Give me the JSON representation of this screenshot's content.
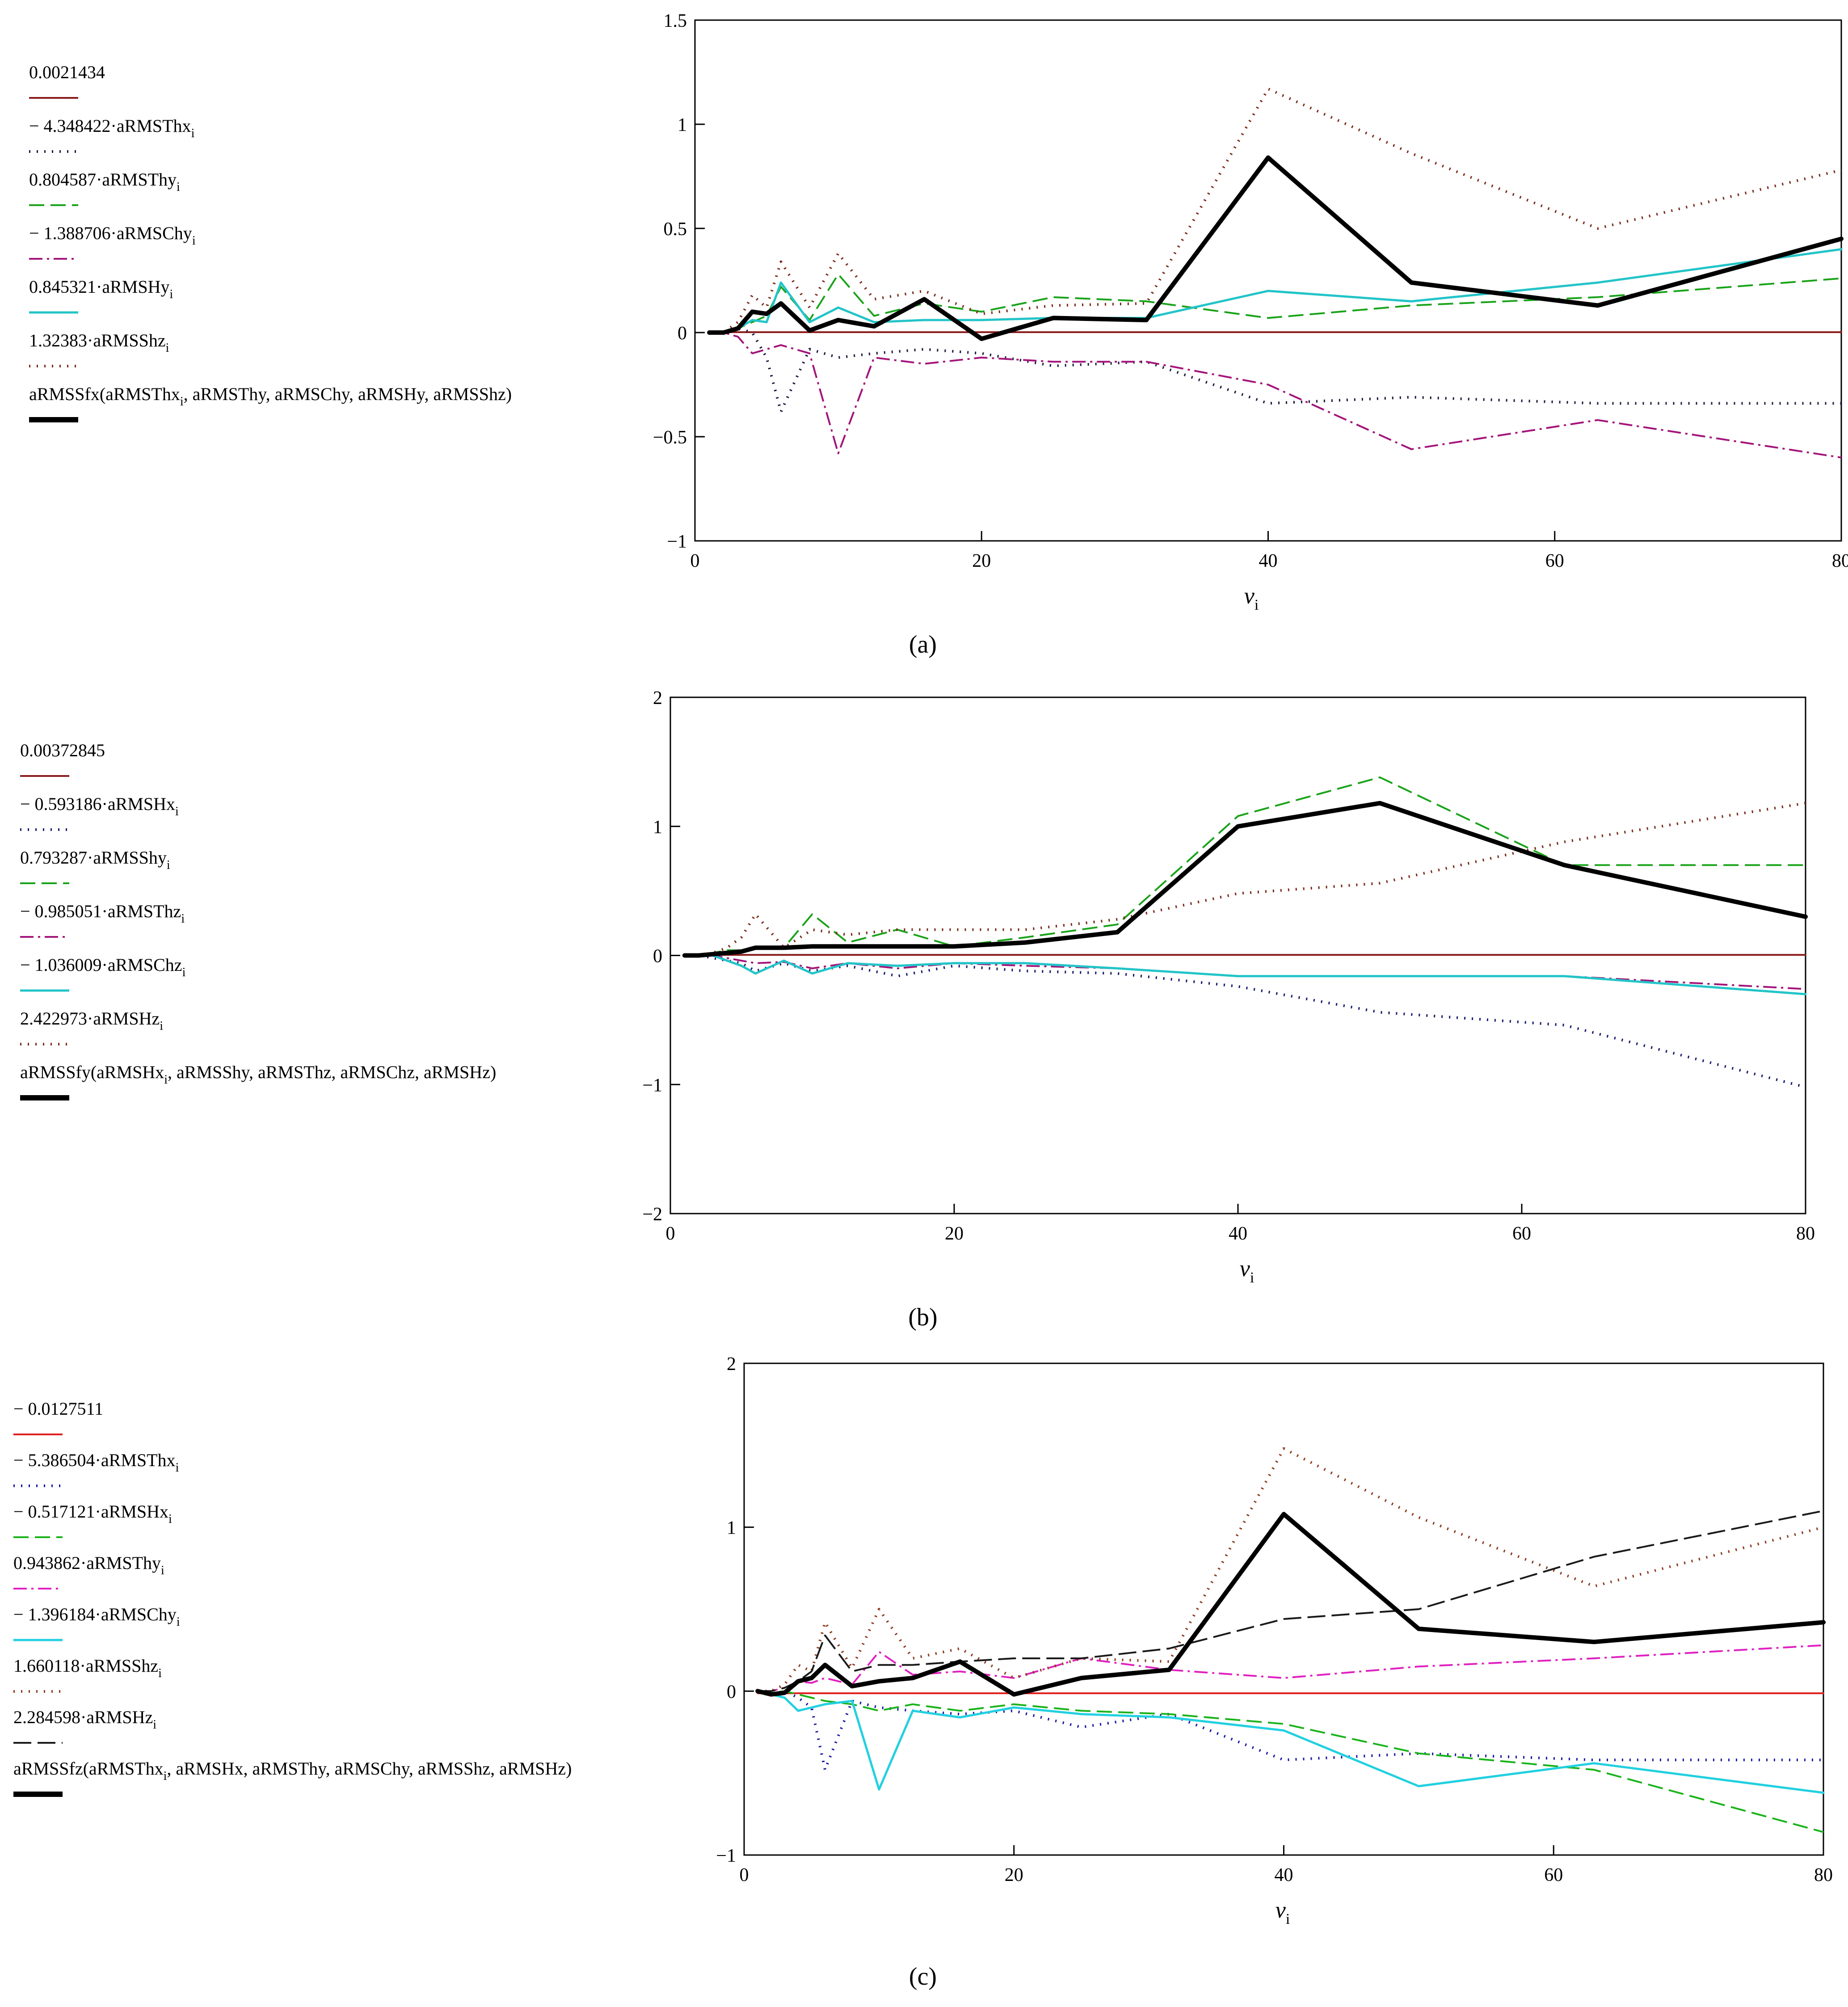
{
  "figure": {
    "panels": [
      {
        "id": "a",
        "caption": "(a)",
        "chart_data": {
          "type": "line",
          "title": "",
          "xlabel": "ν",
          "xlabel_sub": "i",
          "ylabel": "",
          "xlim": [
            0,
            80
          ],
          "ylim": [
            -1,
            1.5
          ],
          "xticks": [
            "0",
            "20",
            "40",
            "60",
            "80"
          ],
          "yticks": [
            "−1",
            "−0.5",
            "0",
            "0.5",
            "1",
            "1.5"
          ],
          "x": [
            1,
            2,
            3,
            4,
            5,
            6,
            8,
            10,
            12.5,
            16,
            20,
            25,
            31.5,
            40,
            50,
            63,
            80
          ],
          "legend_position": "left",
          "series": [
            {
              "name": "0.0021434",
              "legend_pre": "0.0021434",
              "legend_sub": "",
              "legend_post": "",
              "color": "#8b1a1a",
              "dash": "",
              "width": 4,
              "values": [
                0.002,
                0.002,
                0.002,
                0.002,
                0.002,
                0.002,
                0.002,
                0.002,
                0.002,
                0.002,
                0.002,
                0.002,
                0.002,
                0.002,
                0.002,
                0.002,
                0.002
              ]
            },
            {
              "name": "− 4.348422·aRMSThx",
              "legend_pre": "− 4.348422·aRMSThx",
              "legend_sub": "i",
              "legend_post": "",
              "color": "#1a1a40",
              "dash": "3 14",
              "width": 6,
              "values": [
                0,
                0,
                0.02,
                0.0,
                -0.12,
                -0.38,
                -0.08,
                -0.12,
                -0.1,
                -0.08,
                -0.1,
                -0.16,
                -0.14,
                -0.34,
                -0.31,
                -0.34,
                -0.34
              ]
            },
            {
              "name": "0.804587·aRMSThy",
              "legend_pre": "0.804587·aRMSThy",
              "legend_sub": "i",
              "legend_post": "",
              "color": "#1aa31a",
              "dash": "34 14",
              "width": 4,
              "values": [
                0,
                0,
                0.02,
                0.05,
                0.08,
                0.22,
                0.06,
                0.28,
                0.08,
                0.14,
                0.1,
                0.17,
                0.15,
                0.07,
                0.13,
                0.17,
                0.26
              ]
            },
            {
              "name": "− 1.388706·aRMSChy",
              "legend_pre": "− 1.388706·aRMSChy",
              "legend_sub": "i",
              "legend_post": "",
              "color": "#a3147a",
              "dash": "30 10 5 10",
              "width": 4,
              "values": [
                0,
                0,
                -0.02,
                -0.1,
                -0.08,
                -0.06,
                -0.1,
                -0.58,
                -0.12,
                -0.15,
                -0.12,
                -0.14,
                -0.14,
                -0.25,
                -0.56,
                -0.42,
                -0.6
              ]
            },
            {
              "name": "0.845321·aRMSHy",
              "legend_pre": "0.845321·aRMSHy",
              "legend_sub": "i",
              "legend_post": "",
              "color": "#22c4c8",
              "dash": "",
              "width": 5,
              "values": [
                0,
                0,
                0.02,
                0.06,
                0.05,
                0.24,
                0.05,
                0.12,
                0.05,
                0.06,
                0.06,
                0.07,
                0.07,
                0.2,
                0.15,
                0.24,
                0.4
              ]
            },
            {
              "name": "1.32383·aRMSShz",
              "legend_pre": "1.32383·aRMSShz",
              "legend_sub": "i",
              "legend_post": "",
              "color": "#7a2a1a",
              "dash": "3 14",
              "width": 6,
              "values": [
                0,
                0,
                0.05,
                0.18,
                0.12,
                0.34,
                0.12,
                0.38,
                0.16,
                0.2,
                0.09,
                0.13,
                0.14,
                1.17,
                0.86,
                0.5,
                0.78
              ]
            },
            {
              "name": "aRMSSfx(aRMSThx, aRMSThy, aRMSChy, aRMSHy, aRMSShz)",
              "legend_pre": "aRMSSfx(aRMSThx",
              "legend_sub": "i",
              "legend_post": ", aRMSThy, aRMSChy, aRMSHy, aRMSShz)",
              "color": "#000000",
              "dash": "",
              "width": 10,
              "values": [
                0,
                0,
                0.02,
                0.1,
                0.09,
                0.14,
                0.01,
                0.06,
                0.03,
                0.16,
                -0.03,
                0.07,
                0.06,
                0.84,
                0.24,
                0.13,
                0.45
              ]
            }
          ]
        }
      },
      {
        "id": "b",
        "caption": "(b)",
        "chart_data": {
          "type": "line",
          "title": "",
          "xlabel": "ν",
          "xlabel_sub": "i",
          "ylabel": "",
          "xlim": [
            0,
            80
          ],
          "ylim": [
            -2,
            2
          ],
          "xticks": [
            "0",
            "20",
            "40",
            "60",
            "80"
          ],
          "yticks": [
            "−2",
            "−1",
            "0",
            "1",
            "2"
          ],
          "x": [
            1,
            2,
            3,
            4,
            5,
            6,
            8,
            10,
            12.5,
            16,
            20,
            25,
            31.5,
            40,
            50,
            63,
            80
          ],
          "legend_position": "left",
          "series": [
            {
              "name": "0.00372845",
              "legend_pre": "0.00372845",
              "legend_sub": "",
              "legend_post": "",
              "color": "#8b1a1a",
              "dash": "",
              "width": 4,
              "values": [
                0.004,
                0.004,
                0.004,
                0.004,
                0.004,
                0.004,
                0.004,
                0.004,
                0.004,
                0.004,
                0.004,
                0.004,
                0.004,
                0.004,
                0.004,
                0.004,
                0.004
              ]
            },
            {
              "name": "− 0.593186·aRMSHx",
              "legend_pre": "− 0.593186·aRMSHx",
              "legend_sub": "i",
              "legend_post": "",
              "color": "#1a1a6e",
              "dash": "3 14",
              "width": 6,
              "values": [
                0,
                0,
                -0.02,
                -0.04,
                -0.06,
                -0.12,
                -0.06,
                -0.12,
                -0.08,
                -0.16,
                -0.08,
                -0.12,
                -0.14,
                -0.24,
                -0.44,
                -0.54,
                -1.02
              ]
            },
            {
              "name": "0.793287·aRMSShy",
              "legend_pre": "0.793287·aRMSShy",
              "legend_sub": "i",
              "legend_post": "",
              "color": "#1aa31a",
              "dash": "34 14",
              "width": 4,
              "values": [
                0,
                0,
                0.02,
                0.04,
                0.04,
                0.05,
                0.06,
                0.32,
                0.1,
                0.2,
                0.07,
                0.14,
                0.24,
                1.08,
                1.38,
                0.7,
                0.7
              ]
            },
            {
              "name": "− 0.985051·aRMSThz",
              "legend_pre": "− 0.985051·aRMSThz",
              "legend_sub": "i",
              "legend_post": "",
              "color": "#a3147a",
              "dash": "30 10 5 10",
              "width": 4,
              "values": [
                0,
                0,
                0,
                -0.02,
                -0.04,
                -0.06,
                -0.05,
                -0.1,
                -0.06,
                -0.1,
                -0.06,
                -0.08,
                -0.1,
                -0.16,
                -0.16,
                -0.16,
                -0.26
              ]
            },
            {
              "name": "− 1.036009·aRMSChz",
              "legend_pre": "− 1.036009·aRMSChz",
              "legend_sub": "i",
              "legend_post": "",
              "color": "#22c4c8",
              "dash": "",
              "width": 5,
              "values": [
                0,
                0,
                0,
                -0.04,
                -0.08,
                -0.14,
                -0.04,
                -0.14,
                -0.06,
                -0.08,
                -0.06,
                -0.06,
                -0.1,
                -0.16,
                -0.16,
                -0.16,
                -0.3
              ]
            },
            {
              "name": "2.422973·aRMSHz",
              "legend_pre": "2.422973·aRMSHz",
              "legend_sub": "i",
              "legend_post": "",
              "color": "#7a2a1a",
              "dash": "3 14",
              "width": 6,
              "values": [
                0,
                0,
                0.02,
                0.06,
                0.14,
                0.32,
                0.06,
                0.2,
                0.16,
                0.2,
                0.2,
                0.2,
                0.28,
                0.48,
                0.56,
                0.88,
                1.18
              ]
            },
            {
              "name": "aRMSSfy(aRMSHx, aRMSShy, aRMSThz, aRMSChz, aRMSHz)",
              "legend_pre": "aRMSSfy(aRMSHx",
              "legend_sub": "i",
              "legend_post": ", aRMSShy, aRMSThz, aRMSChz, aRMSHz)",
              "color": "#000000",
              "dash": "",
              "width": 10,
              "values": [
                0,
                0,
                0.01,
                0.02,
                0.03,
                0.06,
                0.06,
                0.07,
                0.07,
                0.07,
                0.07,
                0.1,
                0.18,
                1.0,
                1.18,
                0.7,
                0.3
              ]
            }
          ]
        }
      },
      {
        "id": "c",
        "caption": "(c)",
        "chart_data": {
          "type": "line",
          "title": "",
          "xlabel": "ν",
          "xlabel_sub": "i",
          "ylabel": "",
          "xlim": [
            0,
            80
          ],
          "ylim": [
            -1,
            2
          ],
          "xticks": [
            "0",
            "20",
            "40",
            "60",
            "80"
          ],
          "yticks": [
            "−1",
            "0",
            "1",
            "2"
          ],
          "x": [
            1,
            2,
            3,
            4,
            5,
            6,
            8,
            10,
            12.5,
            16,
            20,
            25,
            31.5,
            40,
            50,
            63,
            80
          ],
          "legend_position": "left",
          "series": [
            {
              "name": "− 0.0127511",
              "legend_pre": "− 0.0127511",
              "legend_sub": "",
              "legend_post": "",
              "color": "#e02020",
              "dash": "",
              "width": 4,
              "values": [
                -0.013,
                -0.013,
                -0.013,
                -0.013,
                -0.013,
                -0.013,
                -0.013,
                -0.013,
                -0.013,
                -0.013,
                -0.013,
                -0.013,
                -0.013,
                -0.013,
                -0.013,
                -0.013,
                -0.013
              ]
            },
            {
              "name": "− 5.386504·aRMSThx",
              "legend_pre": "− 5.386504·aRMSThx",
              "legend_sub": "i",
              "legend_post": "",
              "color": "#1a1aa3",
              "dash": "3 14",
              "width": 6,
              "values": [
                0,
                -0.02,
                0,
                -0.04,
                -0.1,
                -0.48,
                -0.06,
                -0.1,
                -0.12,
                -0.14,
                -0.12,
                -0.22,
                -0.14,
                -0.42,
                -0.38,
                -0.42,
                -0.42
              ]
            },
            {
              "name": "− 0.517121·aRMSHx",
              "legend_pre": "− 0.517121·aRMSHx",
              "legend_sub": "i",
              "legend_post": "",
              "color": "#1ab31a",
              "dash": "34 14",
              "width": 4,
              "values": [
                0,
                -0.01,
                0,
                -0.02,
                -0.04,
                -0.06,
                -0.08,
                -0.12,
                -0.08,
                -0.12,
                -0.08,
                -0.12,
                -0.14,
                -0.2,
                -0.38,
                -0.48,
                -0.86
              ]
            },
            {
              "name": "0.943862·aRMSThy",
              "legend_pre": "0.943862·aRMSThy",
              "legend_sub": "i",
              "legend_post": "",
              "color": "#e020c0",
              "dash": "30 10 5 10",
              "width": 4,
              "values": [
                0,
                0,
                0.02,
                0.06,
                0.05,
                0.08,
                0.04,
                0.24,
                0.1,
                0.12,
                0.08,
                0.2,
                0.13,
                0.08,
                0.15,
                0.2,
                0.28
              ]
            },
            {
              "name": "− 1.396184·aRMSChy",
              "legend_pre": "− 1.396184·aRMSChy",
              "legend_sub": "i",
              "legend_post": "",
              "color": "#22d0e0",
              "dash": "",
              "width": 5,
              "values": [
                0,
                -0.02,
                -0.04,
                -0.12,
                -0.1,
                -0.08,
                -0.06,
                -0.6,
                -0.12,
                -0.16,
                -0.1,
                -0.14,
                -0.16,
                -0.24,
                -0.58,
                -0.44,
                -0.62
              ]
            },
            {
              "name": "1.660118·aRMSShz",
              "legend_pre": "1.660118·aRMSShz",
              "legend_sub": "i",
              "legend_post": "",
              "color": "#8b3a1a",
              "dash": "3 14",
              "width": 6,
              "values": [
                0,
                0,
                0.04,
                0.16,
                0.12,
                0.42,
                0.14,
                0.5,
                0.2,
                0.26,
                0.08,
                0.2,
                0.18,
                1.48,
                1.06,
                0.64,
                1.0
              ]
            },
            {
              "name": "2.284598·aRMSHz",
              "legend_pre": "2.284598·aRMSHz",
              "legend_sub": "i",
              "legend_post": "",
              "color": "#1a1a1a",
              "dash": "40 14",
              "width": 4,
              "values": [
                0,
                0,
                0.02,
                0.06,
                0.12,
                0.34,
                0.12,
                0.16,
                0.16,
                0.18,
                0.2,
                0.2,
                0.26,
                0.44,
                0.5,
                0.82,
                1.1
              ]
            },
            {
              "name": "aRMSSfz(aRMSThx, aRMSHx, aRMSThy, aRMSChy, aRMSShz, aRMSHz)",
              "legend_pre": "aRMSSfz(aRMSThx",
              "legend_sub": "i",
              "legend_post": ", aRMSHx, aRMSThy, aRMSChy, aRMSShz, aRMSHz)",
              "color": "#000000",
              "dash": "",
              "width": 10,
              "values": [
                0,
                -0.02,
                -0.01,
                0.06,
                0.08,
                0.16,
                0.03,
                0.06,
                0.08,
                0.18,
                -0.02,
                0.08,
                0.13,
                1.08,
                0.38,
                0.3,
                0.42
              ]
            }
          ]
        }
      }
    ]
  }
}
